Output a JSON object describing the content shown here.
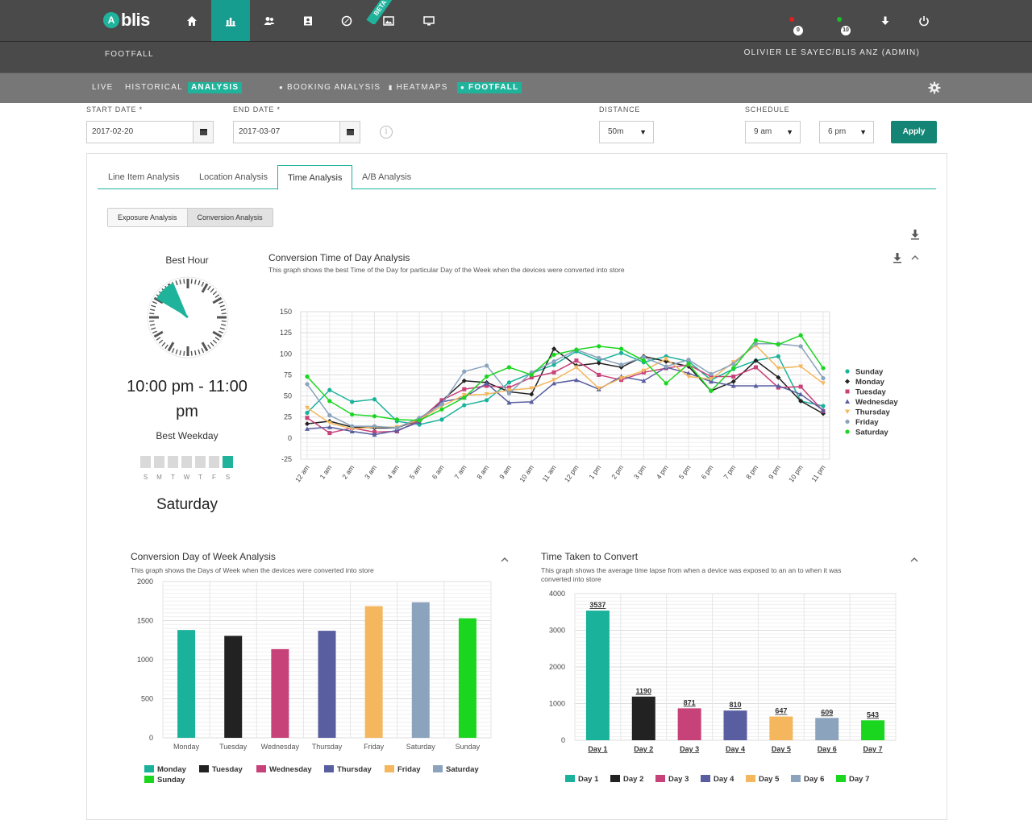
{
  "app": {
    "logo_text": "blis",
    "beta_label": "BETA"
  },
  "header": {
    "section": "FOOTFALL",
    "user": "OLIVIER  LE SAYEC/BLIS ANZ (ADMIN)"
  },
  "alerts": [
    {
      "count": "0",
      "color": "#e02020"
    },
    {
      "count": "10",
      "color": "#1cbd2a"
    }
  ],
  "subnav": {
    "items": [
      {
        "label": "LIVE"
      },
      {
        "label": "HISTORICAL"
      },
      {
        "label": "ANALYSIS"
      },
      {
        "label": "BOOKING ANALYSIS"
      },
      {
        "label": "HEATMAPS"
      },
      {
        "label": "FOOTFALL"
      }
    ]
  },
  "filters": {
    "start_label": "START DATE *",
    "start_value": "2017-02-20",
    "end_label": "END DATE *",
    "end_value": "2017-03-07",
    "info_glyph": "i",
    "distance_label": "DISTANCE",
    "distance_value": "50m",
    "schedule_label": "SCHEDULE",
    "schedule_from": "9 am",
    "schedule_to": "6 pm",
    "apply_label": "Apply"
  },
  "tabs": [
    {
      "label": "Line Item Analysis"
    },
    {
      "label": "Location Analysis"
    },
    {
      "label": "Time Analysis"
    },
    {
      "label": "A/B Analysis"
    }
  ],
  "subtabs": [
    {
      "label": "Exposure Analysis"
    },
    {
      "label": "Conversion Analysis"
    }
  ],
  "best": {
    "hour_title": "Best Hour",
    "hour_value": "10:00 pm - 11:00 pm",
    "weekday_title": "Best Weekday",
    "weekday_letters": [
      "S",
      "M",
      "T",
      "W",
      "T",
      "F",
      "S"
    ],
    "weekday_active_index": 6,
    "weekday_value": "Saturday"
  },
  "colors": {
    "accent": "#1fb39c",
    "sunday": "#1ab29b",
    "monday": "#222222",
    "tuesday": "#c8427a",
    "wednesday": "#585ea0",
    "thursday": "#f4b75e",
    "friday": "#8ba3bd",
    "saturday": "#1ad61f"
  },
  "chart_data": [
    {
      "type": "line",
      "title": "Conversion Time of Day Analysis",
      "subtitle": "This graph shows the best Time of the Day for particular Day of the Week when the devices were converted into store",
      "categories": [
        "12 am",
        "1 am",
        "2 am",
        "3 am",
        "4 am",
        "5 am",
        "6 am",
        "7 am",
        "8 am",
        "9 am",
        "10 am",
        "11 am",
        "12 pm",
        "1 pm",
        "2 pm",
        "3 pm",
        "4 pm",
        "5 pm",
        "6 pm",
        "7 pm",
        "8 pm",
        "9 pm",
        "10 pm",
        "11 pm"
      ],
      "ylim": [
        -25,
        150
      ],
      "yticks": [
        -25,
        0,
        25,
        50,
        75,
        100,
        125,
        150
      ],
      "legend_position": "right",
      "series": [
        {
          "name": "Sunday",
          "color": "#1ab29b",
          "marker": "circle",
          "values": [
            30,
            57,
            43,
            46,
            20,
            16,
            22,
            39,
            45,
            66,
            77,
            87,
            103,
            92,
            101,
            90,
            97,
            91,
            69,
            82,
            92,
            97,
            44,
            38
          ]
        },
        {
          "name": "Monday",
          "color": "#222222",
          "marker": "diamond",
          "values": [
            17,
            20,
            13,
            12,
            12,
            22,
            44,
            68,
            66,
            55,
            52,
            106,
            86,
            89,
            84,
            97,
            91,
            85,
            56,
            67,
            92,
            72,
            44,
            29
          ]
        },
        {
          "name": "Tuesday",
          "color": "#c8427a",
          "marker": "square",
          "values": [
            24,
            6,
            12,
            7,
            8,
            21,
            45,
            58,
            62,
            60,
            72,
            78,
            92,
            75,
            69,
            78,
            83,
            87,
            73,
            73,
            84,
            60,
            61,
            32
          ]
        },
        {
          "name": "Wednesday",
          "color": "#585ea0",
          "marker": "triangle",
          "values": [
            11,
            13,
            8,
            4,
            9,
            19,
            43,
            48,
            65,
            42,
            43,
            65,
            69,
            58,
            73,
            68,
            84,
            77,
            67,
            62,
            62,
            62,
            52,
            33
          ]
        },
        {
          "name": "Thursday",
          "color": "#f4b75e",
          "marker": "triangle-down",
          "values": [
            36,
            18,
            11,
            13,
            13,
            22,
            38,
            51,
            52,
            57,
            59,
            69,
            84,
            59,
            71,
            80,
            94,
            73,
            70,
            90,
            110,
            83,
            85,
            65
          ]
        },
        {
          "name": "Friday",
          "color": "#8ba3bd",
          "marker": "circle",
          "values": [
            64,
            27,
            14,
            14,
            12,
            24,
            40,
            79,
            86,
            53,
            78,
            91,
            105,
            95,
            87,
            96,
            85,
            93,
            76,
            88,
            112,
            112,
            109,
            71
          ]
        },
        {
          "name": "Saturday",
          "color": "#1ad61f",
          "marker": "circle",
          "values": [
            73,
            44,
            28,
            26,
            22,
            21,
            34,
            48,
            73,
            84,
            75,
            99,
            105,
            109,
            106,
            92,
            65,
            88,
            56,
            83,
            116,
            111,
            122,
            83
          ]
        }
      ]
    },
    {
      "type": "bar",
      "title": "Conversion Day of Week Analysis",
      "subtitle": "This graph shows the Days of Week when the devices were converted into store",
      "categories": [
        "Monday",
        "Tuesday",
        "Wednesday",
        "Thursday",
        "Friday",
        "Saturday",
        "Sunday"
      ],
      "values": [
        1380,
        1305,
        1135,
        1370,
        1685,
        1735,
        1530
      ],
      "colors": [
        "#1ab29b",
        "#222222",
        "#c8427a",
        "#585ea0",
        "#f4b75e",
        "#8ba3bd",
        "#1ad61f"
      ],
      "ylim": [
        0,
        2000
      ],
      "yticks": [
        0,
        500,
        1000,
        1500,
        2000
      ],
      "legend_position": "bottom"
    },
    {
      "type": "bar",
      "title": "Time Taken to Convert",
      "subtitle": "This graph shows the average time lapse from when a device was exposed to an an to when it was converted into store",
      "categories": [
        "Day 1",
        "Day 2",
        "Day 3",
        "Day 4",
        "Day 5",
        "Day 6",
        "Day 7"
      ],
      "values": [
        3537,
        1190,
        871,
        810,
        647,
        609,
        543
      ],
      "colors": [
        "#1ab29b",
        "#222222",
        "#c8427a",
        "#585ea0",
        "#f4b75e",
        "#8ba3bd",
        "#1ad61f"
      ],
      "ylim": [
        0,
        4000
      ],
      "yticks": [
        0,
        1000,
        2000,
        3000,
        4000
      ],
      "legend_position": "bottom"
    }
  ]
}
